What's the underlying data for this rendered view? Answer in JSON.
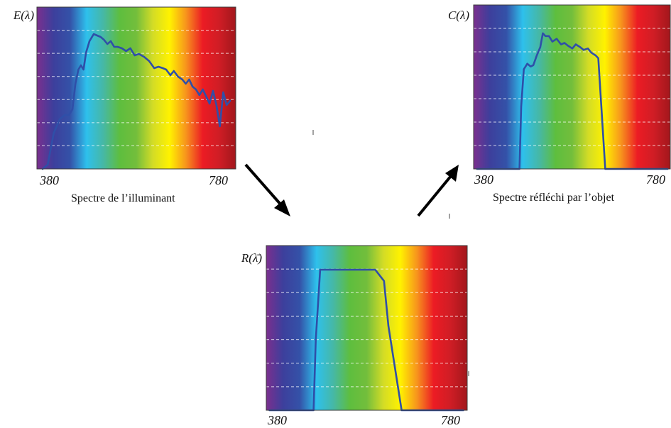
{
  "chart_data": [
    {
      "id": "illuminant",
      "type": "line",
      "title": "",
      "ylabel": "E(λ)",
      "caption": "Spectre de l’illuminant",
      "tick_labels": [
        "380",
        "780"
      ],
      "xlim": [
        380,
        780
      ],
      "ylim": [
        0,
        1
      ],
      "background": "visible-spectrum",
      "grid": "dashed-horizontal",
      "x": [
        360,
        372,
        386,
        400,
        412,
        422,
        430,
        437,
        444,
        450,
        456,
        462,
        470,
        480,
        488,
        496,
        504,
        512,
        520,
        528,
        536,
        546,
        556,
        566,
        576,
        586,
        598,
        610,
        622,
        632,
        642,
        650,
        660,
        668,
        678,
        688,
        696,
        704,
        712,
        720,
        728,
        736,
        744,
        752,
        760,
        768,
        776,
        784,
        792,
        800
      ],
      "y": [
        0.0,
        0.03,
        0.25,
        0.35,
        0.38,
        0.38,
        0.42,
        0.6,
        0.7,
        0.73,
        0.7,
        0.82,
        0.9,
        0.95,
        0.94,
        0.93,
        0.91,
        0.88,
        0.9,
        0.86,
        0.86,
        0.85,
        0.83,
        0.85,
        0.8,
        0.81,
        0.79,
        0.76,
        0.71,
        0.72,
        0.71,
        0.7,
        0.66,
        0.69,
        0.65,
        0.63,
        0.6,
        0.63,
        0.58,
        0.56,
        0.52,
        0.56,
        0.51,
        0.46,
        0.55,
        0.45,
        0.3,
        0.54,
        0.45,
        0.48
      ],
      "color": "#2f4fa8"
    },
    {
      "id": "reflectance",
      "type": "line",
      "title": "",
      "ylabel": "R(λ̄)",
      "caption": "",
      "tick_labels": [
        "380",
        "780"
      ],
      "xlim": [
        380,
        780
      ],
      "ylim": [
        0,
        1
      ],
      "background": "visible-spectrum",
      "grid": "dashed-horizontal",
      "x": [
        360,
        460,
        465,
        475,
        600,
        620,
        630,
        660,
        670,
        800
      ],
      "y": [
        0.0,
        0.0,
        0.5,
        1.0,
        1.0,
        0.92,
        0.6,
        0.0,
        0.0,
        0.0
      ],
      "color": "#2f4fa8"
    },
    {
      "id": "reflected",
      "type": "line",
      "title": "",
      "ylabel": "C(λ)",
      "caption": "Spectre réfléchi par l’objet",
      "tick_labels": [
        "380",
        "780"
      ],
      "xlim": [
        380,
        780
      ],
      "ylim": [
        0,
        1
      ],
      "background": "visible-spectrum",
      "grid": "dashed-horizontal",
      "x": [
        360,
        458,
        462,
        468,
        476,
        484,
        490,
        498,
        506,
        512,
        518,
        526,
        534,
        544,
        554,
        562,
        570,
        580,
        588,
        598,
        606,
        616,
        624,
        634,
        640,
        656,
        660,
        800
      ],
      "y": [
        0.0,
        0.0,
        0.45,
        0.72,
        0.76,
        0.74,
        0.75,
        0.82,
        0.88,
        0.98,
        0.96,
        0.96,
        0.92,
        0.94,
        0.9,
        0.91,
        0.89,
        0.87,
        0.9,
        0.88,
        0.86,
        0.87,
        0.84,
        0.82,
        0.8,
        0.0,
        0.0,
        0.0
      ],
      "color": "#2f4fa8"
    }
  ],
  "spectrum_colors": [
    "#7b2f8e",
    "#3d3f9c",
    "#3452a8",
    "#2ec0ec",
    "#46b8a6",
    "#5ebe3e",
    "#73be3c",
    "#d3dc26",
    "#fff200",
    "#f7941d",
    "#ec1c24",
    "#cf1d25",
    "#a2171c"
  ],
  "curve_color": "#2f4fa8",
  "arrow_color": "#000000"
}
